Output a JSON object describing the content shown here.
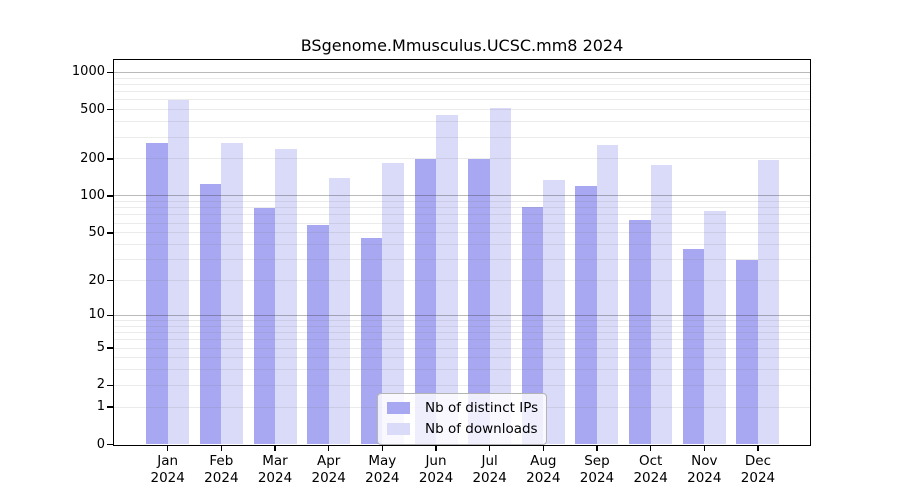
{
  "chart_data": {
    "type": "bar",
    "title": "BSgenome.Mmusculus.UCSC.mm8 2024",
    "categories": [
      "Jan",
      "Feb",
      "Mar",
      "Apr",
      "May",
      "Jun",
      "Jul",
      "Aug",
      "Sep",
      "Oct",
      "Nov",
      "Dec"
    ],
    "x_tick_year": "2024",
    "series": [
      {
        "name": "Nb of distinct IPs",
        "color": "#a8a8f2",
        "values": [
          270,
          125,
          80,
          58,
          45,
          200,
          200,
          82,
          120,
          64,
          37,
          30
        ]
      },
      {
        "name": "Nb of downloads",
        "color": "#dadaf9",
        "values": [
          600,
          270,
          240,
          140,
          185,
          450,
          520,
          135,
          260,
          180,
          75,
          195
        ]
      }
    ],
    "yscale": "log1p",
    "y_ticks": [
      0,
      1,
      2,
      5,
      10,
      20,
      50,
      100,
      200,
      500,
      1000
    ],
    "ylim": [
      0,
      1200
    ],
    "grid": "on",
    "grid_minor_color": "#ebebeb",
    "grid_decade_color": "#b0b0b0",
    "legend_position": "lower center",
    "xlabel": "",
    "ylabel": ""
  }
}
